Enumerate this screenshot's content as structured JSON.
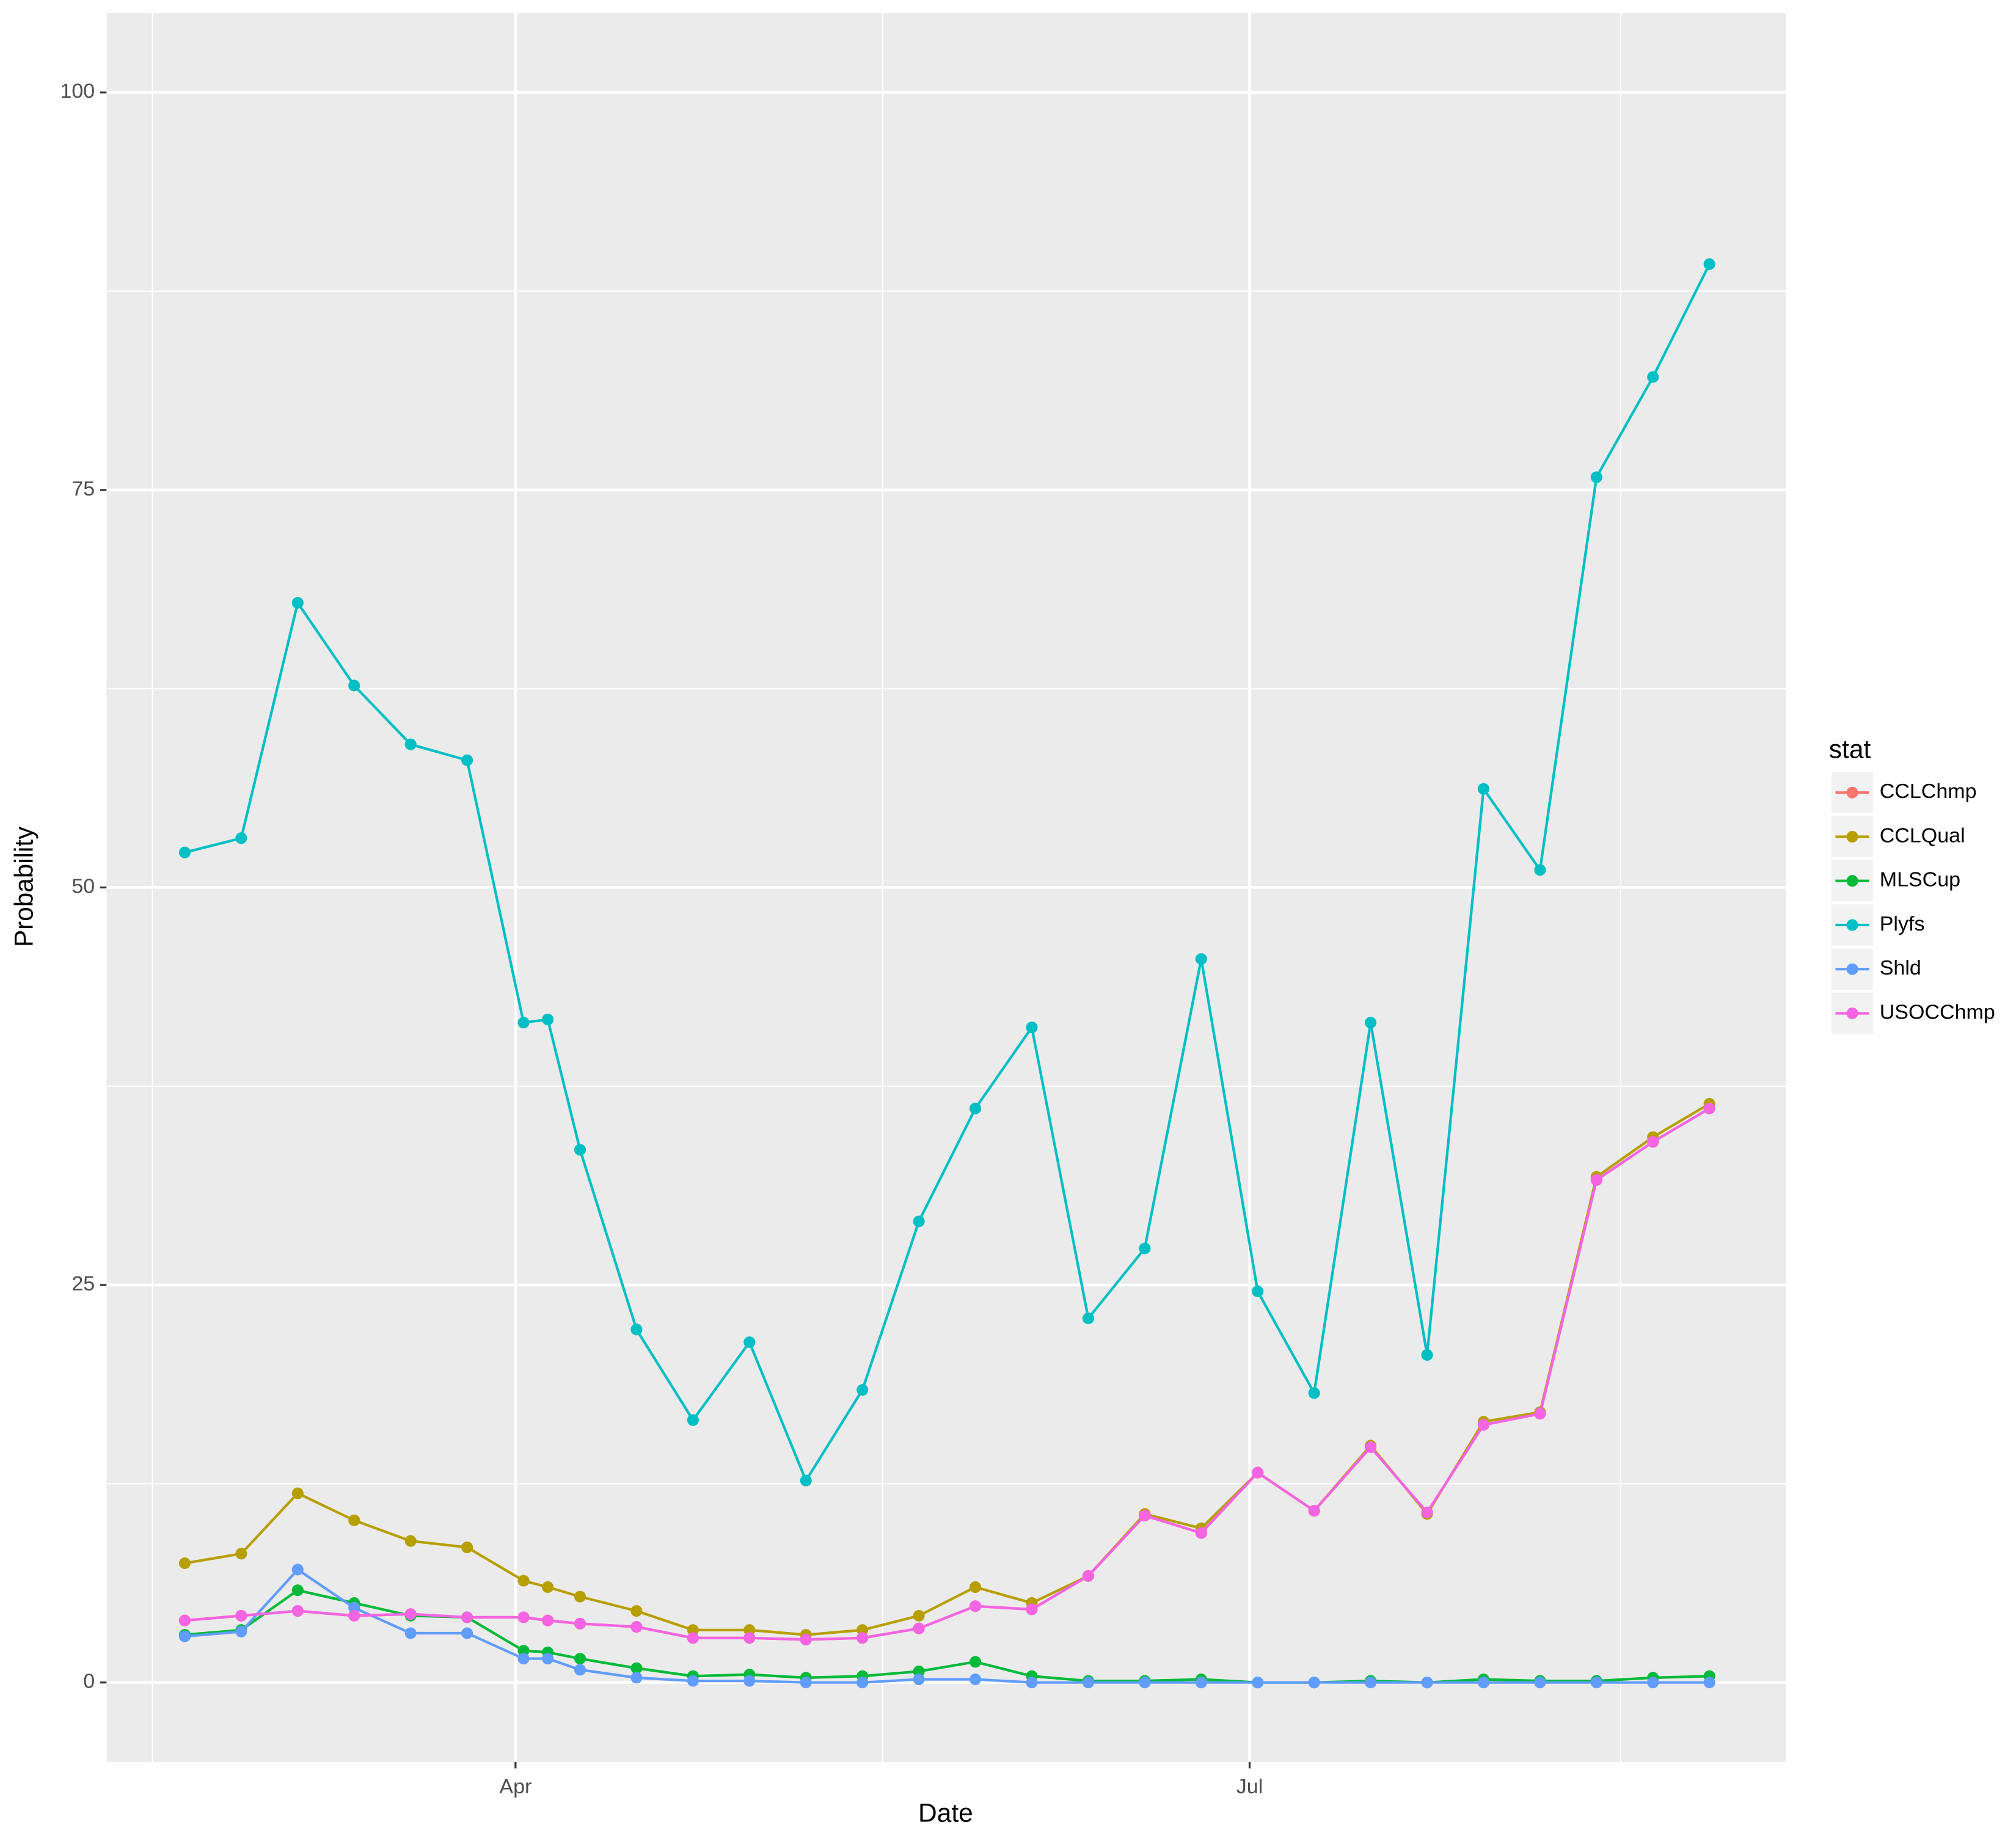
{
  "chart_data": {
    "type": "line",
    "x_label": "Date",
    "y_label": "Probability",
    "legend_title": "stat",
    "x": [
      50,
      57,
      64,
      71,
      78,
      85,
      92,
      95,
      99,
      106,
      113,
      120,
      127,
      134,
      141,
      148,
      155,
      162,
      169,
      176,
      183,
      190,
      197,
      204,
      211,
      218,
      225,
      232,
      239
    ],
    "xlim": [
      40.3,
      248.5
    ],
    "xticks": [
      {
        "value": 91,
        "label": "Apr"
      },
      {
        "value": 182,
        "label": "Jul"
      }
    ],
    "xminor": [
      46,
      136.5,
      228
    ],
    "ylim": [
      -5,
      105
    ],
    "yticks": [
      0,
      25,
      50,
      75,
      100
    ],
    "yminor": [
      12.5,
      37.5,
      62.5,
      87.5
    ],
    "grid": true,
    "legend_position": "right",
    "series": [
      {
        "name": "CCLChmp",
        "color": "#F8766D",
        "values": [
          3.9,
          4.2,
          4.5,
          4.2,
          4.3,
          4.1,
          4.1,
          3.9,
          3.7,
          3.5,
          2.8,
          2.8,
          2.7,
          2.8,
          3.4,
          4.8,
          4.6,
          6.7,
          10.5,
          9.4,
          13.2,
          10.8,
          14.8,
          10.7,
          16.2,
          16.9,
          31.6,
          34.0,
          36.1
        ]
      },
      {
        "name": "CCLQual",
        "color": "#B79F00",
        "values": [
          7.5,
          8.1,
          11.9,
          10.2,
          8.9,
          8.5,
          6.4,
          6.0,
          5.4,
          4.5,
          3.3,
          3.3,
          3.0,
          3.3,
          4.2,
          6.0,
          5.0,
          6.7,
          10.6,
          9.7,
          13.2,
          10.8,
          14.9,
          10.6,
          16.4,
          17.0,
          31.8,
          34.3,
          36.4
        ]
      },
      {
        "name": "MLSCup",
        "color": "#00BA38",
        "values": [
          3.0,
          3.3,
          5.8,
          5.0,
          4.2,
          4.1,
          2.0,
          1.9,
          1.5,
          0.9,
          0.4,
          0.5,
          0.3,
          0.4,
          0.7,
          1.3,
          0.4,
          0.1,
          0.1,
          0.2,
          0,
          0,
          0.1,
          0,
          0.2,
          0.1,
          0.1,
          0.3,
          0.4
        ]
      },
      {
        "name": "Plyfs",
        "color": "#00BFC4",
        "values": [
          52.2,
          53.1,
          67.9,
          62.7,
          59.0,
          58.0,
          41.5,
          41.7,
          33.5,
          22.2,
          16.5,
          21.4,
          12.7,
          18.4,
          29.0,
          36.1,
          41.2,
          22.9,
          27.3,
          45.5,
          24.6,
          18.2,
          41.5,
          20.6,
          56.2,
          51.1,
          75.8,
          82.1,
          89.2
        ]
      },
      {
        "name": "Shld",
        "color": "#619CFF",
        "values": [
          2.9,
          3.2,
          7.1,
          4.7,
          3.1,
          3.1,
          1.5,
          1.5,
          0.8,
          0.3,
          0.1,
          0.1,
          0,
          0,
          0.2,
          0.2,
          0,
          0,
          0,
          0,
          0,
          0,
          0,
          0,
          0,
          0,
          0,
          0,
          0
        ]
      },
      {
        "name": "USOCChmp",
        "color": "#F564E3",
        "values": [
          3.9,
          4.2,
          4.5,
          4.2,
          4.3,
          4.1,
          4.1,
          3.9,
          3.7,
          3.5,
          2.8,
          2.8,
          2.7,
          2.8,
          3.4,
          4.8,
          4.6,
          6.7,
          10.5,
          9.4,
          13.2,
          10.8,
          14.8,
          10.7,
          16.2,
          16.9,
          31.6,
          34.0,
          36.1
        ]
      }
    ]
  }
}
